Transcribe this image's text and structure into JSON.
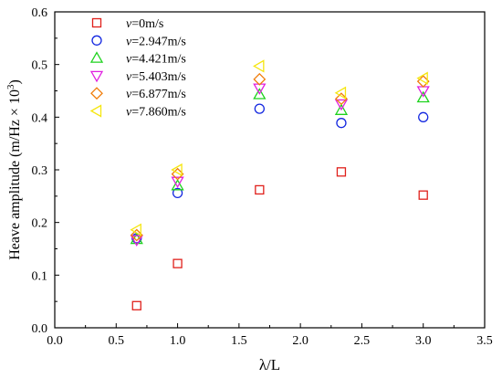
{
  "chart_data": {
    "type": "scatter",
    "xlabel": "λ/L",
    "ylabel": "Heave amplitude (m/Hz × 10",
    "ylabel_sup": "3",
    "ylabel_close": ")",
    "xlim": [
      0.0,
      3.5
    ],
    "ylim": [
      0.0,
      0.6
    ],
    "xticks": [
      0.0,
      0.5,
      1.0,
      1.5,
      2.0,
      2.5,
      3.0,
      3.5
    ],
    "xtick_labels": [
      "0.0",
      "0.5",
      "1.0",
      "1.5",
      "2.0",
      "2.5",
      "3.0",
      "3.5"
    ],
    "yticks": [
      0.0,
      0.1,
      0.2,
      0.3,
      0.4,
      0.5,
      0.6
    ],
    "ytick_labels": [
      "0.0",
      "0.1",
      "0.2",
      "0.3",
      "0.4",
      "0.5",
      "0.6"
    ],
    "grid": false,
    "legend_position": "top-left",
    "series": [
      {
        "name": "v=0m/s",
        "legend_var": "v",
        "legend_rest": "=0m/s",
        "marker": "square",
        "color": "#e0201b",
        "x": [
          0.667,
          1.0,
          1.667,
          2.333,
          3.0
        ],
        "y": [
          0.042,
          0.122,
          0.262,
          0.296,
          0.252
        ]
      },
      {
        "name": "v=2.947m/s",
        "legend_var": "v",
        "legend_rest": "=2.947m/s",
        "marker": "circle",
        "color": "#1428e0",
        "x": [
          0.667,
          1.0,
          1.667,
          2.333,
          3.0
        ],
        "y": [
          0.17,
          0.256,
          0.416,
          0.389,
          0.4
        ]
      },
      {
        "name": "v=4.421m/s",
        "legend_var": "v",
        "legend_rest": "=4.421m/s",
        "marker": "triangle-up",
        "color": "#1ed21e",
        "x": [
          0.667,
          1.0,
          1.667,
          2.333,
          3.0
        ],
        "y": [
          0.168,
          0.27,
          0.443,
          0.413,
          0.437
        ]
      },
      {
        "name": "v=5.403m/s",
        "legend_var": "v",
        "legend_rest": "=5.403m/s",
        "marker": "triangle-down",
        "color": "#e020e0",
        "x": [
          0.667,
          1.0,
          1.667,
          2.333,
          3.0
        ],
        "y": [
          0.167,
          0.278,
          0.455,
          0.425,
          0.45
        ]
      },
      {
        "name": "v=6.877m/s",
        "legend_var": "v",
        "legend_rest": "=6.877m/s",
        "marker": "diamond",
        "color": "#f07d0a",
        "x": [
          0.667,
          1.0,
          1.667,
          2.333,
          3.0
        ],
        "y": [
          0.176,
          0.292,
          0.472,
          0.435,
          0.468
        ]
      },
      {
        "name": "v=7.860m/s",
        "legend_var": "v",
        "legend_rest": "=7.860m/s",
        "marker": "triangle-left",
        "color": "#f5e60f",
        "x": [
          0.667,
          1.0,
          1.667,
          2.333,
          3.0
        ],
        "y": [
          0.186,
          0.3,
          0.497,
          0.446,
          0.474
        ]
      }
    ]
  }
}
